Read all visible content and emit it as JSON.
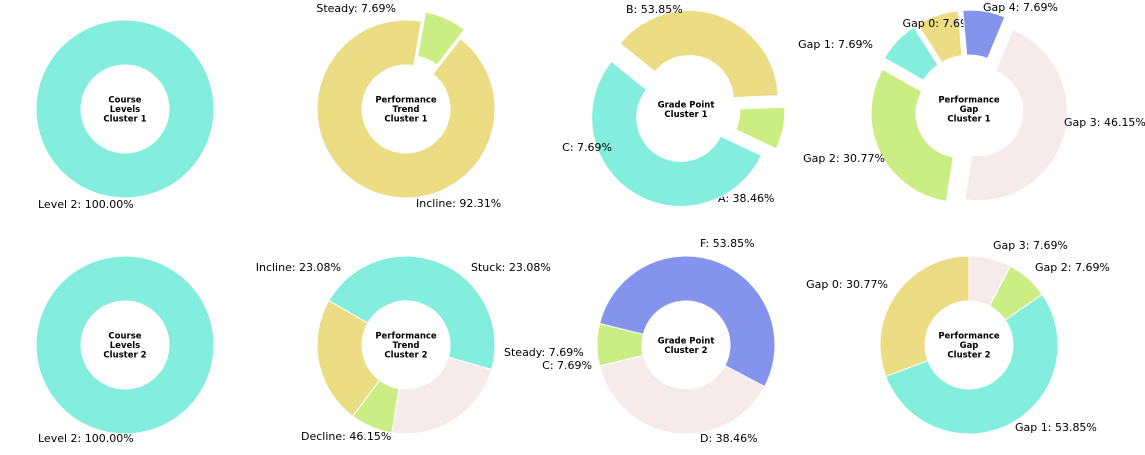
{
  "colors": {
    "cyan": "#83EEDE",
    "yellow": "#ECDC84",
    "green": "#CBEE84",
    "pink": "#F6EAEA",
    "blue": "#8494EC"
  },
  "chart_data": [
    {
      "type": "pie",
      "style": "donut",
      "center_label": [
        "Course",
        "Levels",
        "Cluster 1"
      ],
      "slices": [
        {
          "label": "Level 2: 100.00%",
          "value": 100.0,
          "color": "#83EEDE",
          "explode": false
        }
      ]
    },
    {
      "type": "pie",
      "style": "donut",
      "center_label": [
        "Performance",
        "Trend",
        "Cluster 1"
      ],
      "slices": [
        {
          "label": "Incline: 92.31%",
          "value": 92.31,
          "color": "#ECDC84",
          "explode": false
        },
        {
          "label": "Steady: 7.69%",
          "value": 7.69,
          "color": "#CBEE84",
          "explode": true
        }
      ]
    },
    {
      "type": "pie",
      "style": "donut",
      "center_label": [
        "Grade Point",
        "Cluster 1"
      ],
      "slices": [
        {
          "label": "A: 38.46%",
          "value": 38.46,
          "color": "#ECDC84",
          "explode": true
        },
        {
          "label": "B: 53.85%",
          "value": 53.85,
          "color": "#83EEDE",
          "explode": true
        },
        {
          "label": "C: 7.69%",
          "value": 7.69,
          "color": "#CBEE84",
          "explode": true
        }
      ]
    },
    {
      "type": "pie",
      "style": "donut",
      "center_label": [
        "Performance",
        "Gap",
        "Cluster 1"
      ],
      "slices": [
        {
          "label": "Gap 0: 7.69%",
          "value": 7.69,
          "color": "#ECDC84",
          "explode": true
        },
        {
          "label": "Gap 1: 7.69%",
          "value": 7.69,
          "color": "#83EEDE",
          "explode": true
        },
        {
          "label": "Gap 2: 30.77%",
          "value": 30.77,
          "color": "#CBEE84",
          "explode": true
        },
        {
          "label": "Gap 3: 46.15%",
          "value": 46.15,
          "color": "#F6EAEA",
          "explode": true
        },
        {
          "label": "Gap 4: 7.69%",
          "value": 7.69,
          "color": "#8494EC",
          "explode": true
        }
      ]
    },
    {
      "type": "pie",
      "style": "donut",
      "center_label": [
        "Course",
        "Levels",
        "Cluster 2"
      ],
      "slices": [
        {
          "label": "Level 2: 100.00%",
          "value": 100.0,
          "color": "#83EEDE",
          "explode": false
        }
      ]
    },
    {
      "type": "pie",
      "style": "donut",
      "center_label": [
        "Performance",
        "Trend",
        "Cluster 2"
      ],
      "slices": [
        {
          "label": "Decline: 46.15%",
          "value": 46.15,
          "color": "#83EEDE",
          "explode": false
        },
        {
          "label": "Incline: 23.08%",
          "value": 23.08,
          "color": "#ECDC84",
          "explode": false
        },
        {
          "label": "Steady: 7.69%",
          "value": 7.69,
          "color": "#CBEE84",
          "explode": false
        },
        {
          "label": "Stuck: 23.08%",
          "value": 23.08,
          "color": "#F6EAEA",
          "explode": false
        }
      ]
    },
    {
      "type": "pie",
      "style": "donut",
      "center_label": [
        "Grade Point",
        "Cluster 2"
      ],
      "slices": [
        {
          "label": "C: 7.69%",
          "value": 7.69,
          "color": "#CBEE84",
          "explode": false
        },
        {
          "label": "D: 38.46%",
          "value": 38.46,
          "color": "#F6EAEA",
          "explode": false
        },
        {
          "label": "F: 53.85%",
          "value": 53.85,
          "color": "#8494EC",
          "explode": false
        }
      ]
    },
    {
      "type": "pie",
      "style": "donut",
      "center_label": [
        "Performance",
        "Gap",
        "Cluster 2"
      ],
      "slices": [
        {
          "label": "Gap 0: 30.77%",
          "value": 30.77,
          "color": "#ECDC84",
          "explode": false
        },
        {
          "label": "Gap 1: 53.85%",
          "value": 53.85,
          "color": "#83EEDE",
          "explode": false
        },
        {
          "label": "Gap 2: 7.69%",
          "value": 7.69,
          "color": "#CBEE84",
          "explode": false
        },
        {
          "label": "Gap 3: 7.69%",
          "value": 7.69,
          "color": "#F6EAEA",
          "explode": false
        }
      ]
    }
  ]
}
